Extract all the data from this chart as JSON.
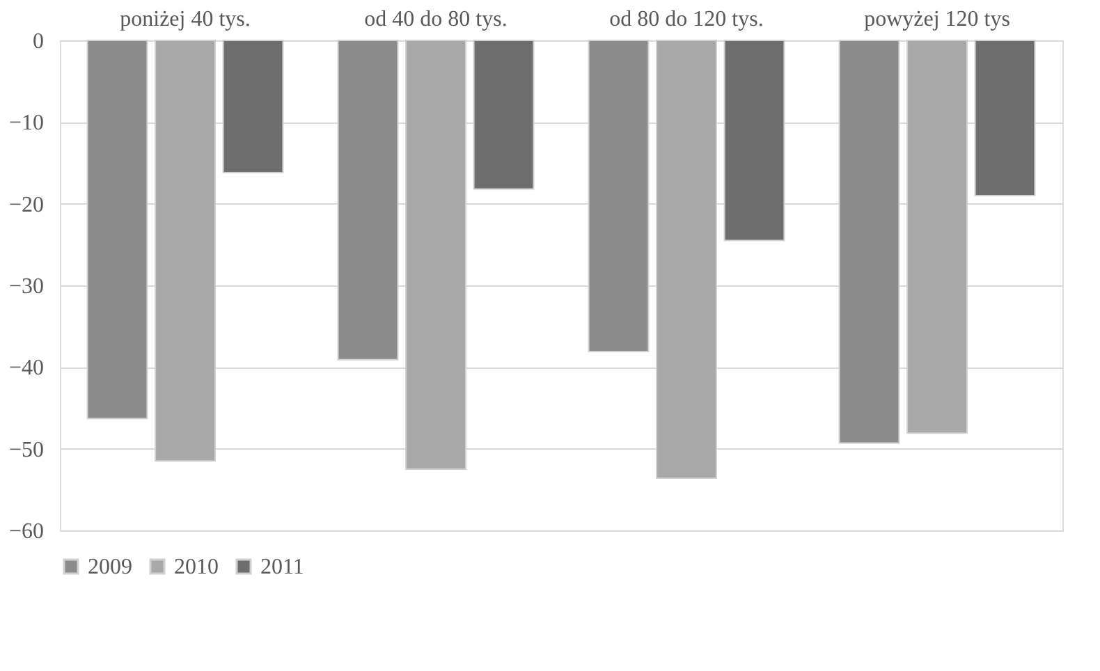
{
  "chart_data": {
    "type": "bar",
    "categories": [
      "poniżej 40 tys.",
      "od 40 do 80 tys.",
      "od 80 do 120 tys.",
      "powyżej 120 tys"
    ],
    "series": [
      {
        "name": "2009",
        "color": "#8c8c8c",
        "values": [
          -46.3,
          -39.1,
          -38.1,
          -49.3
        ]
      },
      {
        "name": "2010",
        "color": "#a8a8a8",
        "values": [
          -51.5,
          -52.5,
          -53.6,
          -48.1
        ]
      },
      {
        "name": "2011",
        "color": "#6e6e6e",
        "values": [
          -16.2,
          -18.2,
          -24.5,
          -19.0
        ]
      }
    ],
    "ylim": [
      -60,
      0
    ],
    "yticks": [
      -60,
      -50,
      -40,
      -30,
      -20,
      -10,
      0
    ],
    "grid": "y",
    "legend": "bottom"
  }
}
